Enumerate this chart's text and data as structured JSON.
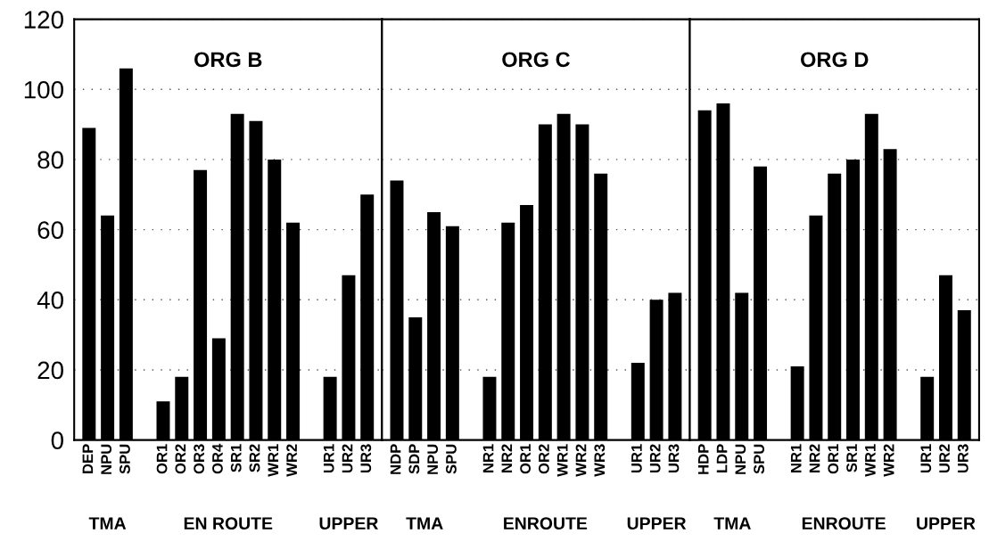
{
  "chart_data": [
    {
      "type": "bar",
      "title": "ORG B",
      "categories": [
        "DEP",
        "NPU",
        "SPU",
        null,
        "OR1",
        "OR2",
        "OR3",
        "OR4",
        "SR1",
        "SR2",
        "WR1",
        "WR2",
        null,
        "UR1",
        "UR2",
        "UR3"
      ],
      "values": [
        89,
        64,
        106,
        null,
        11,
        18,
        77,
        29,
        93,
        91,
        80,
        62,
        null,
        18,
        47,
        70
      ],
      "color": "#000000",
      "ylim": [
        0,
        120
      ],
      "yticks": [
        0,
        20,
        40,
        60,
        80,
        100,
        120
      ],
      "grid": "y",
      "annotations": [
        "TMA",
        "EN ROUTE",
        "UPPER"
      ]
    },
    {
      "type": "bar",
      "title": "ORG C",
      "categories": [
        "NDP",
        "SDP",
        "NPU",
        "SPU",
        null,
        "NR1",
        "NR2",
        "OR1",
        "OR2",
        "WR1",
        "WR2",
        "WR3",
        null,
        "UR1",
        "UR2",
        "UR3"
      ],
      "values": [
        74,
        35,
        65,
        61,
        null,
        18,
        62,
        67,
        90,
        93,
        90,
        76,
        null,
        22,
        40,
        42
      ],
      "color": "#000000",
      "ylim": [
        0,
        120
      ],
      "yticks": [
        0,
        20,
        40,
        60,
        80,
        100,
        120
      ],
      "grid": "y",
      "tick_labels": "x",
      "annotations": [
        "TMA",
        "ENROUTE",
        "UPPER"
      ]
    },
    {
      "type": "bar",
      "title": "ORG D",
      "categories": [
        "HDP",
        "LDP",
        "NPU",
        "SPU",
        null,
        "NR1",
        "NR2",
        "OR1",
        "SR1",
        "WR1",
        "WR2",
        null,
        "UR1",
        "UR2",
        "UR3"
      ],
      "values": [
        94,
        96,
        42,
        78,
        null,
        21,
        64,
        76,
        80,
        93,
        83,
        null,
        18,
        47,
        37
      ],
      "color": "#000000",
      "ylim": [
        0,
        120
      ],
      "yticks": [
        0,
        20,
        40,
        60,
        80,
        100,
        120
      ],
      "grid": "y",
      "tick_labels": "x",
      "annotations": [
        "TMA",
        "ENROUTE",
        "UPPER"
      ]
    }
  ]
}
